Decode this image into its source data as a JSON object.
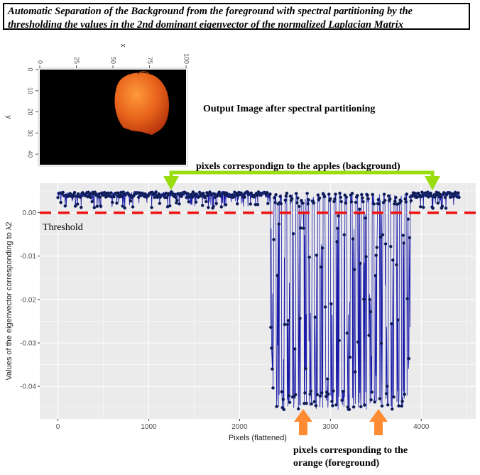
{
  "title_lines": [
    "Automatic Separation of the Background from the foreground with spectral partitioning by the",
    "thresholding the values in the 2nd dominant eigenvector of the normalized Laplacian Matrix"
  ],
  "output_caption": "Output Image after spectral partitioning",
  "background_annotation": "pixels correspondign to the apples (background)",
  "foreground_annotation_lines": [
    "pixels corresponding to the",
    "orange (foreground)"
  ],
  "threshold_label": "Threshold",
  "colors": {
    "series": "#1a1aa8",
    "series_point": "#0d1a3a",
    "threshold": "#ee1111",
    "arrow_green": "#99dd11",
    "arrow_orange": "#ff8c33",
    "panel_bg": "#ebebeb",
    "grid": "#ffffff"
  },
  "chart_data": [
    {
      "type": "image",
      "description_type": "heatmap",
      "xlabel": "x",
      "ylabel": "y",
      "x_ticks": [
        "0",
        "25",
        "50",
        "75",
        "100"
      ],
      "y_ticks": [
        "0",
        "10",
        "20",
        "30",
        "40"
      ],
      "xlim": [
        0,
        100
      ],
      "ylim": [
        0,
        45
      ],
      "object_color": "#e8641c",
      "background_color": "#000000"
    },
    {
      "type": "scatter",
      "xlabel": "Pixels (flattened)",
      "ylabel": "Values of the eigenvector corresponding to λ2",
      "x_ticks": [
        "0",
        "1000",
        "2000",
        "3000",
        "4000"
      ],
      "y_ticks": [
        "0.00",
        "-0.01",
        "-0.02",
        "-0.03",
        "-0.04"
      ],
      "xlim": [
        -200,
        4600
      ],
      "ylim": [
        -0.0475,
        0.0068
      ],
      "threshold": 0.0,
      "segments": [
        {
          "name": "background",
          "x_range": [
            0,
            2320
          ],
          "value_range": [
            0.001,
            0.0048
          ]
        },
        {
          "name": "foreground",
          "x_range": [
            2320,
            3900
          ],
          "value_range": [
            -0.0455,
            0.0045
          ]
        },
        {
          "name": "background",
          "x_range": [
            3900,
            4420
          ],
          "value_range": [
            0.001,
            0.0048
          ]
        }
      ],
      "n_points": 4420
    }
  ]
}
